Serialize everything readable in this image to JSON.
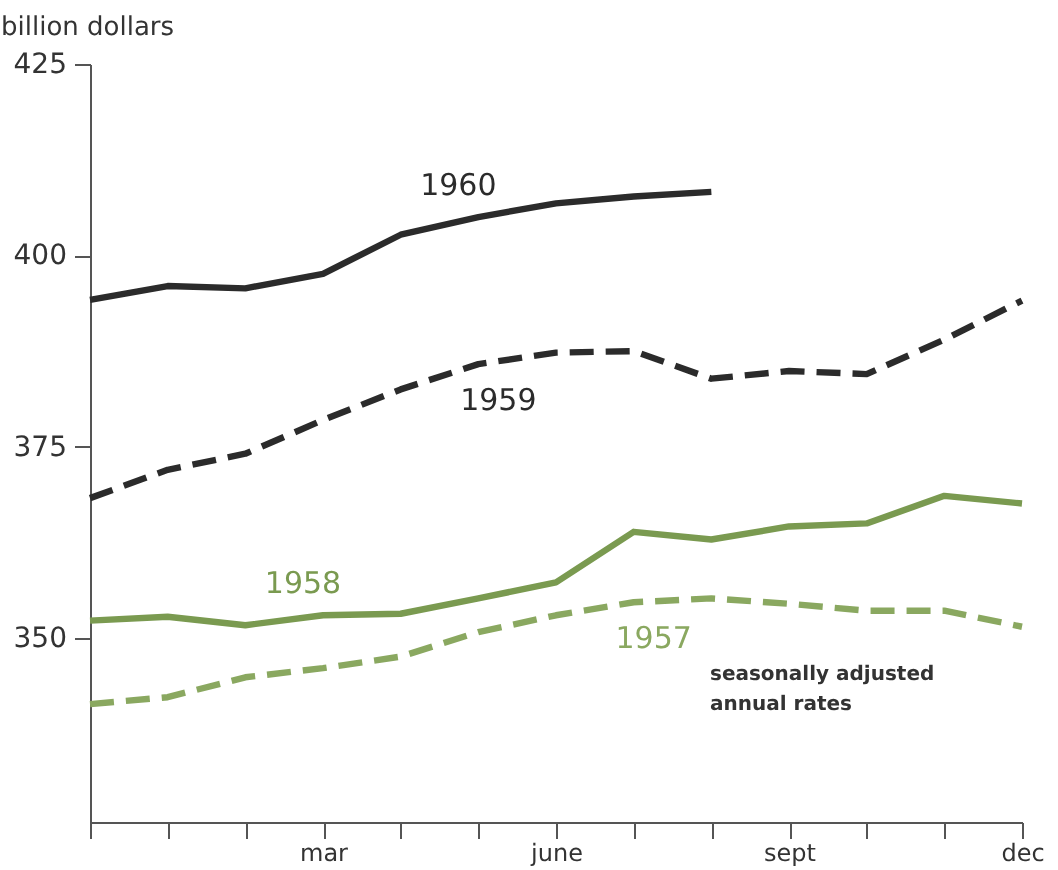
{
  "chart_data": {
    "type": "line",
    "ylabel": "billion dollars",
    "categories": [
      null,
      null,
      null,
      "mar",
      null,
      null,
      "june",
      null,
      null,
      "sept",
      null,
      null,
      "dec"
    ],
    "ylim": [
      326,
      425
    ],
    "yticks": [
      350,
      375,
      400,
      425
    ],
    "legend": false,
    "series": [
      {
        "name": "1960",
        "color": "#2b2b2b",
        "line_style": "solid",
        "values": [
          394.2,
          396.0,
          395.7,
          397.6,
          402.7,
          405.0,
          406.8,
          407.7,
          408.3,
          null,
          null,
          null,
          null
        ]
      },
      {
        "name": "1959",
        "color": "#2b2b2b",
        "line_style": "dashed",
        "values": [
          368.3,
          372.0,
          374.1,
          378.5,
          382.5,
          385.8,
          387.3,
          387.5,
          383.9,
          384.9,
          384.5,
          389.0,
          394.1
        ]
      },
      {
        "name": "1958",
        "color": "#7a9a50",
        "line_style": "solid",
        "values": [
          352.3,
          352.8,
          351.7,
          353.0,
          353.2,
          355.2,
          357.3,
          363.9,
          362.9,
          364.6,
          365.0,
          368.6,
          367.6
        ]
      },
      {
        "name": "1957",
        "color": "#8aa860",
        "line_style": "dashed",
        "values": [
          341.4,
          342.3,
          344.9,
          346.1,
          347.6,
          350.8,
          353.0,
          354.7,
          355.2,
          354.5,
          353.6,
          353.6,
          351.5
        ]
      }
    ],
    "annotations": [
      "seasonally adjusted",
      "annual rates"
    ]
  }
}
